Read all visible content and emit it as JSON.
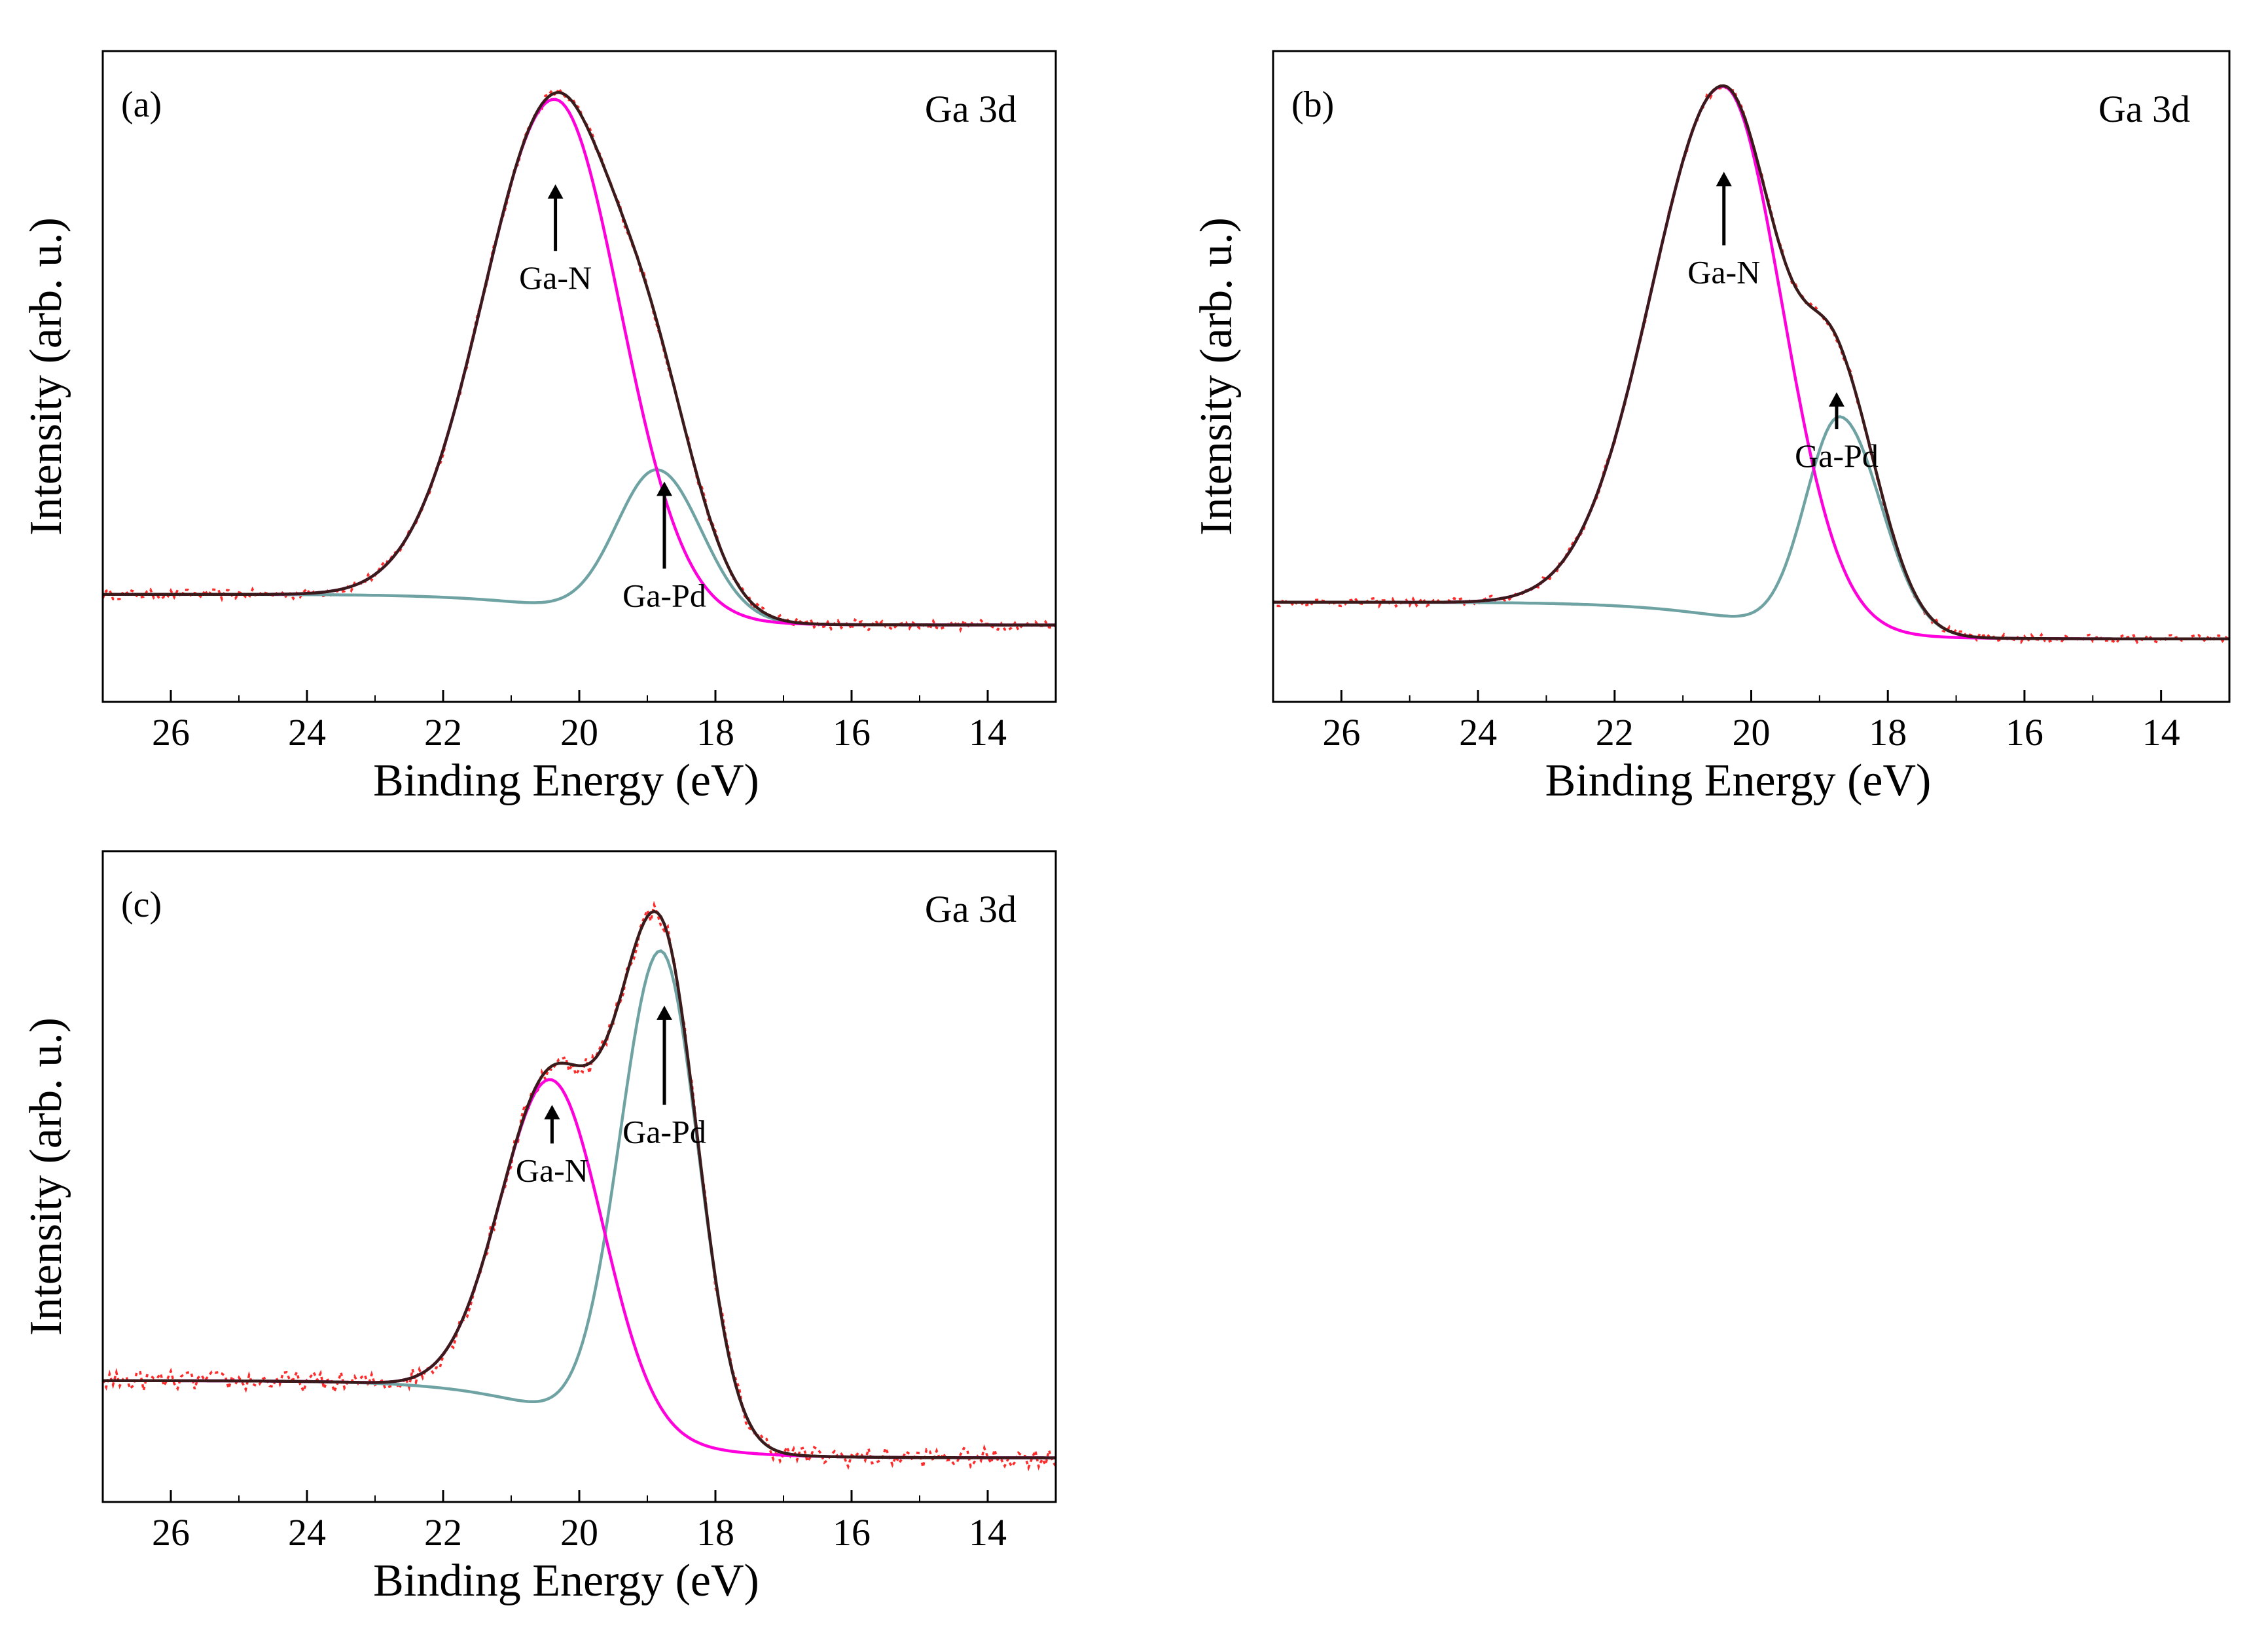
{
  "colors": {
    "raw": "#ff2a2a",
    "envelope": "#3a1a1a",
    "ga_n": "#ff00dd",
    "ga_pd": "#6fa3a3",
    "frame": "#000000"
  },
  "chart_data": [
    {
      "type": "line",
      "panel_label": "(a)",
      "core_level": "Ga 3d",
      "xlabel": "Binding Energy (eV)",
      "ylabel": "Intensity (arb. u.)",
      "xlim": [
        27,
        13
      ],
      "ylim": [
        -0.15,
        1.12
      ],
      "x_ticks": [
        "26",
        "24",
        "22",
        "20",
        "18",
        "16",
        "14"
      ],
      "baseline": {
        "x_left": 27,
        "y_left": 0.06,
        "x_right": 13,
        "y_right": 0.0
      },
      "series": [
        {
          "name": "Ga-N",
          "center": 20.35,
          "amp": 0.99,
          "sigma_left": 1.05,
          "sigma_right": 0.95
        },
        {
          "name": "Ga-Pd",
          "center": 18.85,
          "amp": 0.29,
          "sigma_left": 0.6,
          "sigma_right": 0.65
        }
      ],
      "noise": 0.01,
      "annotations": [
        {
          "text": "Ga-N",
          "x": 20.35,
          "arrow_from": 0.73,
          "arrow_to": 0.86
        },
        {
          "text": "Ga-Pd",
          "x": 18.75,
          "arrow_from": 0.11,
          "arrow_to": 0.28
        }
      ]
    },
    {
      "type": "line",
      "panel_label": "(b)",
      "core_level": "Ga 3d",
      "xlabel": "Binding Energy (eV)",
      "ylabel": "Intensity (arb. u.)",
      "xlim": [
        27,
        13
      ],
      "ylim": [
        -0.12,
        1.12
      ],
      "x_ticks": [
        "26",
        "24",
        "22",
        "20",
        "18",
        "16",
        "14"
      ],
      "baseline": {
        "x_left": 27,
        "y_left": 0.07,
        "x_right": 13,
        "y_right": 0.0
      },
      "series": [
        {
          "name": "Ga-N",
          "center": 20.4,
          "amp": 1.01,
          "sigma_left": 1.05,
          "sigma_right": 0.85
        },
        {
          "name": "Ga-Pd",
          "center": 18.7,
          "amp": 0.41,
          "sigma_left": 0.5,
          "sigma_right": 0.6
        }
      ],
      "noise": 0.008,
      "annotations": [
        {
          "text": "Ga-N",
          "x": 20.4,
          "arrow_from": 0.75,
          "arrow_to": 0.89
        },
        {
          "text": "Ga-Pd",
          "x": 18.75,
          "arrow_from": 0.4,
          "arrow_to": 0.47
        }
      ]
    },
    {
      "type": "line",
      "panel_label": "(c)",
      "core_level": "Ga 3d",
      "xlabel": "Binding Energy (eV)",
      "ylabel": "Intensity (arb. u.)",
      "xlim": [
        27,
        13
      ],
      "ylim": [
        -0.08,
        1.1
      ],
      "x_ticks": [
        "26",
        "24",
        "22",
        "20",
        "18",
        "16",
        "14"
      ],
      "baseline": {
        "x_left": 27,
        "y_left": 0.14,
        "x_right": 13,
        "y_right": 0.0
      },
      "series": [
        {
          "name": "Ga-N",
          "center": 20.4,
          "amp": 0.6,
          "sigma_left": 0.75,
          "sigma_right": 0.75
        },
        {
          "name": "Ga-Pd",
          "center": 18.8,
          "amp": 0.89,
          "sigma_left": 0.6,
          "sigma_right": 0.55
        }
      ],
      "noise": 0.018,
      "annotations": [
        {
          "text": "Ga-N",
          "x": 20.4,
          "arrow_from": 0.57,
          "arrow_to": 0.64
        },
        {
          "text": "Ga-Pd",
          "x": 18.75,
          "arrow_from": 0.64,
          "arrow_to": 0.82
        }
      ]
    }
  ]
}
